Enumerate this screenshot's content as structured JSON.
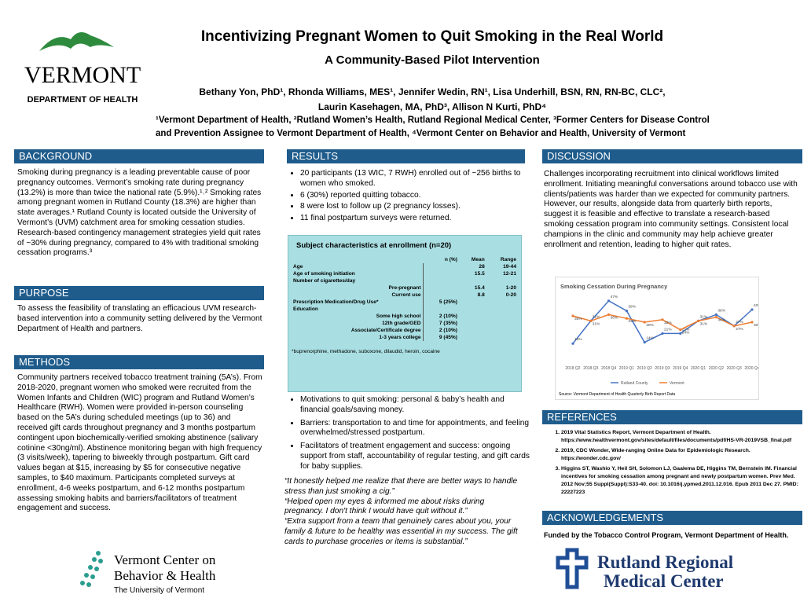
{
  "header": {
    "title": "Incentivizing Pregnant Women to Quit Smoking in the Real World",
    "subtitle": "A Community-Based Pilot Intervention",
    "authors": [
      "Bethany Yon, PhD¹, Rhonda Williams, MES¹, Jennifer Wedin, RN¹, Lisa Underhill, BSN, RN, RN-BC, CLC²,",
      "Laurin Kasehagen, MA, PhD³, Allison N Kurti, PhD⁴"
    ],
    "affiliations": [
      "¹Vermont Department of Health, ²Rutland Women’s Health, Rutland Regional Medical Center, ³Former Centers for Disease Control",
      "and Prevention Assignee to Vermont Department of Health, ⁴Vermont Center on Behavior and Health, University of Vermont"
    ],
    "logo": [
      "VERMONT",
      "DEPARTMENT OF HEALTH"
    ]
  },
  "background": {
    "heading": "BACKGROUND",
    "text": "Smoking during pregnancy is a leading preventable cause of poor pregnancy outcomes. Vermont’s smoking rate during pregnancy (13.2%) is more than twice the national rate (5.9%).¹˒² Smoking rates among pregnant women in Rutland County (18.3%) are higher than state averages.¹ Rutland County is located outside the University of Vermont’s (UVM) catchment area for smoking cessation studies. Research-based contingency management strategies yield quit rates of ~30% during pregnancy, compared to 4% with traditional smoking cessation programs.³"
  },
  "purpose": {
    "heading": "PURPOSE",
    "text": "To assess the feasibility of translating an efficacious UVM research-based intervention into a community setting delivered by the Vermont Department of Health and partners."
  },
  "methods": {
    "heading": "METHODS",
    "text": "Community partners received tobacco treatment training (5A’s). From 2018-2020, pregnant women who smoked were recruited from the Women Infants and Children (WIC) program and Rutland Women’s Healthcare (RWH). Women were provided in-person counseling based on the 5A’s during scheduled meetings (up to 36) and received gift cards throughout pregnancy and 3 months postpartum contingent upon biochemically-verified smoking abstinence (salivary cotinine <30ng/ml). Abstinence monitoring began with high frequency (3 visits/week), tapering to biweekly through postpartum. Gift card values began at $15, increasing by $5 for consecutive negative samples, to $40 maximum.  Participants completed surveys at enrollment, 4-6 weeks postpartum, and 6-12 months postpartum assessing smoking habits and barriers/facilitators of treatment engagement and success."
  },
  "results": {
    "heading": "RESULTS",
    "bullets": [
      "20 participants (13 WIC, 7 RWH) enrolled out of ~256 births to women who smoked.",
      "6 (30%) reported quitting tobacco.",
      "8 were lost to follow up (2 pregnancy losses).",
      "11 final postpartum surveys were returned."
    ],
    "table": {
      "title": "Subject characteristics at enrollment (n=20)",
      "columns": [
        "n (%)",
        "Mean",
        "Range"
      ],
      "rows": [
        {
          "label": "Age",
          "mean": "28",
          "range": "19-44"
        },
        {
          "label": "Age of smoking initiation",
          "mean": "15.5",
          "range": "12-21"
        },
        {
          "label": "Number of cigarettes/day",
          "sub": [
            {
              "label": "Pre-pregnant",
              "mean": "15.4",
              "range": "1-20"
            },
            {
              "label": "Current use",
              "mean": "8.8",
              "range": "0-20"
            }
          ]
        },
        {
          "label": "Prescription Medication/Drug Use*",
          "n": "5 (25%)"
        },
        {
          "label": "Education",
          "sub": [
            {
              "label": "Some high school",
              "n": "2 (10%)"
            },
            {
              "label": "12th grade/GED",
              "n": "7 (35%)"
            },
            {
              "label": "Associate/Certificate degree",
              "n": "2 (10%)"
            },
            {
              "label": "1-3 years college",
              "n": "9 (45%)"
            }
          ]
        }
      ],
      "footnote": "*buprenorphine, methadone, suboxone, dilaudid, heroin, cocaine"
    },
    "bullets2": [
      "Motivations to quit smoking: personal & baby’s health and financial goals/saving money.",
      "Barriers: transportation to and time for appointments, and feeling overwhelmed/stressed postpartum.",
      "Facilitators of treatment engagement and success: ongoing support from staff, accountability of regular testing, and gift cards for baby supplies."
    ],
    "quotes": [
      "“It honestly helped me realize that there are better ways to handle stress than just smoking a cig.”",
      "“Helped open my eyes & informed me about risks during pregnancy. I don't think I would have quit without it.”",
      "“Extra support from a team that genuinely cares about you, your family & future to be healthy was essential in my success. The gift cards to purchase groceries or items is substantial.”"
    ]
  },
  "discussion": {
    "heading": "DISCUSSION",
    "text": "Challenges incorporating recruitment into clinical workflows limited enrollment. Initiating meaningful conversations around tobacco use with clients/patients was harder than we expected for community partners. However, our results, alongside data from quarterly birth reports, suggest it is feasible and effective to translate a research-based smoking cessation program into community settings. Consistent local champions in the clinic and community may help achieve greater enrollment and retention, leading to higher quit rates.",
    "chart": {
      "type": "line",
      "title": "Smoking Cessation During Pregnancy",
      "categories": [
        "2018 Q2",
        "2018 Q3",
        "2018 Q4",
        "2019 Q1",
        "2019 Q2",
        "2019 Q3",
        "2019 Q4",
        "2020 Q1",
        "2020 Q2",
        "2020 Q3",
        "2020 Q4"
      ],
      "ylim": [
        0,
        50
      ],
      "series": [
        {
          "name": "Rutland County",
          "color": "#4472c4",
          "values": [
            13,
            31,
            47,
            39,
            14,
            21,
            21,
            31,
            36,
            27,
            40
          ],
          "value_labels": [
            "13%",
            "31%",
            "47%",
            "39%",
            "14%",
            "21%",
            "21%",
            "31%",
            "36%",
            "27%",
            "40%"
          ]
        },
        {
          "name": "Vermont",
          "color": "#ed7d31",
          "values": [
            35,
            31,
            36,
            33,
            30,
            32,
            24,
            31,
            34,
            27,
            30
          ],
          "value_labels": [
            "35%",
            "31%",
            "36%",
            "33%",
            "30%",
            "32%",
            "24%",
            "31%",
            "34%",
            "27%",
            "30%"
          ]
        }
      ],
      "source": "Source: Vermont Department of Health Quarterly Birth Report Data"
    }
  },
  "references": {
    "heading": "REFERENCES",
    "items": [
      "2019 Vital Statistics Report, Vermont Department of Health. https://www.healthvermont.gov/sites/default/files/documents/pdf/HS-VR-2019VSB_final.pdf",
      "2019, CDC Wonder, Wide-ranging Online Data for Epidemiologic Research. https://wonder.cdc.gov/",
      "Higgins ST, Washio Y, Heil SH, Solomon LJ, Gaalema DE, Higgins TM, Bernstein IM. Financial incentives for smoking cessation among pregnant and newly postpartum women. Prev Med. 2012 Nov;55 Suppl(Suppl):S33-40. doi: 10.1016/j.ypmed.2011.12.016. Epub 2011 Dec 27. PMID: 22227223"
    ]
  },
  "acknowledgements": {
    "heading": "ACKNOWLEDGEMENTS",
    "text": "Funded by the Tobacco Control Program, Vermont Department of Health."
  },
  "logos": {
    "vcbh": [
      "Vermont Center on",
      "Behavior & Health",
      "The University of Vermont"
    ],
    "rutland": [
      "Rutland Regional",
      "Medical Center"
    ]
  }
}
